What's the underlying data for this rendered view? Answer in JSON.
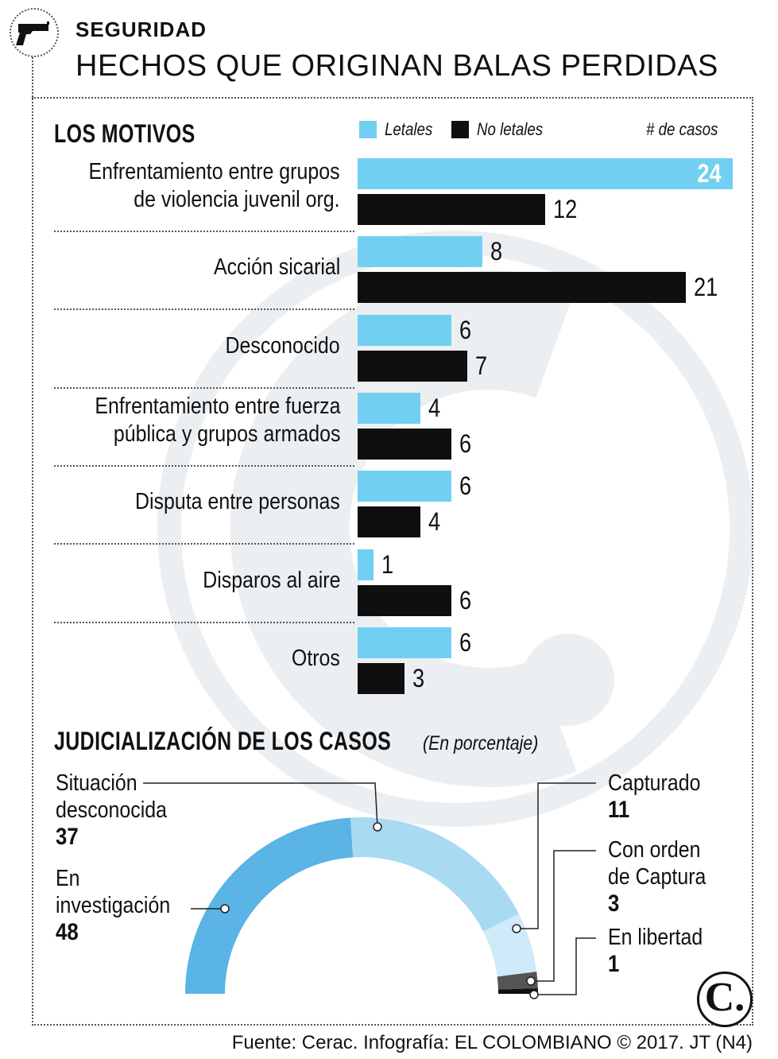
{
  "header": {
    "section": "SEGURIDAD",
    "title": "HECHOS QUE ORIGINAN BALAS PERDIDAS",
    "icon": "gun-icon"
  },
  "colors": {
    "letales": "#71cff1",
    "no_letales": "#0f0f0f",
    "watermark": "#e9edf1"
  },
  "chart_data": [
    {
      "type": "bar",
      "orientation": "horizontal",
      "title": "LOS MOTIVOS",
      "unit_label": "# de casos",
      "legend": [
        "Letales",
        "No letales"
      ],
      "categories": [
        "Enfrentamiento entre grupos de violencia juvenil org.",
        "Acción sicarial",
        "Desconocido",
        "Enfrentamiento entre fuerza pública y grupos armados",
        "Disputa entre personas",
        "Disparos al aire",
        "Otros"
      ],
      "category_lines": [
        [
          "Enfrentamiento entre grupos",
          "de violencia juvenil org."
        ],
        [
          "Acción sicarial"
        ],
        [
          "Desconocido"
        ],
        [
          "Enfrentamiento entre fuerza",
          "pública y grupos armados"
        ],
        [
          "Disputa entre personas"
        ],
        [
          "Disparos al aire"
        ],
        [
          "Otros"
        ]
      ],
      "series": [
        {
          "name": "Letales",
          "values": [
            24,
            8,
            6,
            4,
            6,
            1,
            6
          ]
        },
        {
          "name": "No letales",
          "values": [
            12,
            21,
            7,
            6,
            4,
            6,
            3
          ]
        }
      ],
      "xlim": [
        0,
        24
      ]
    },
    {
      "type": "pie",
      "style": "half-donut",
      "title": "JUDICIALIZACIÓN DE LOS CASOS",
      "subtitle": "(En porcentaje)",
      "slices": [
        {
          "label": "En investigación",
          "lines": [
            "En",
            "investigación"
          ],
          "value": 48,
          "color": "#5ab4e5"
        },
        {
          "label": "Situación desconocida",
          "lines": [
            "Situación",
            "desconocida"
          ],
          "value": 37,
          "color": "#a8daf2"
        },
        {
          "label": "Capturado",
          "lines": [
            "Capturado"
          ],
          "value": 11,
          "color": "#cfeaf8"
        },
        {
          "label": "Con orden de Captura",
          "lines": [
            "Con orden",
            "de Captura"
          ],
          "value": 3,
          "color": "#555555"
        },
        {
          "label": "En libertad",
          "lines": [
            "En libertad"
          ],
          "value": 1,
          "color": "#111111"
        }
      ]
    }
  ],
  "footer": {
    "source": "Fuente: Cerac. Infografía: EL COLOMBIANO © 2017. JT (N4)",
    "logo": "C."
  }
}
